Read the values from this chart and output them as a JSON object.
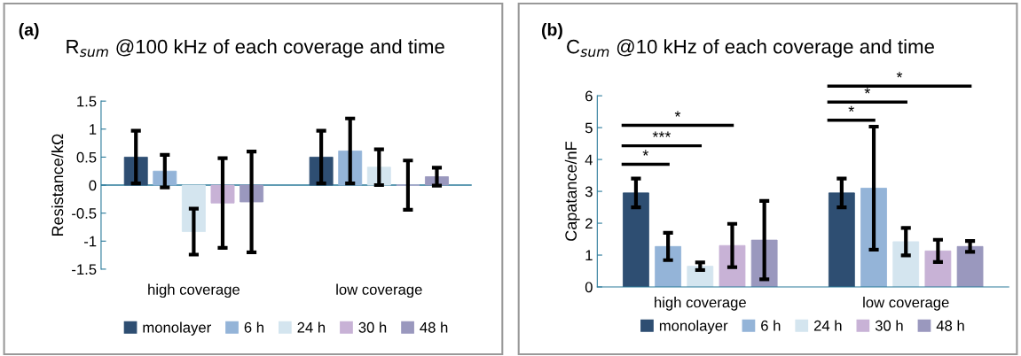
{
  "chart_data": [
    {
      "type": "bar",
      "title": "R$_{sum}$ @100 kHz of each coverage and time",
      "ylabel": "Resistance/kΩ",
      "categories": [
        "high coverage",
        "low coverage"
      ],
      "ylim": [
        -1.5,
        1.5
      ],
      "yticks": [
        {
          "value": -1.5,
          "label": "-1.5"
        },
        {
          "value": -1,
          "label": "-1"
        },
        {
          "value": -0.5,
          "label": "-0.5"
        },
        0,
        0.5,
        1,
        1.5
      ],
      "grid": false,
      "legend": "bottom",
      "annotations": [
        "(a)"
      ],
      "ref_lines": [
        {
          "axis": "y",
          "value": 0,
          "color": "#2a7a9a"
        }
      ],
      "series": [
        {
          "name": "monolayer",
          "color": "#2e4e72",
          "values": [
            0.5,
            0.5
          ],
          "errors": [
            0.47,
            0.47
          ]
        },
        {
          "name": "6 h",
          "color": "#94b4d8",
          "values": [
            0.25,
            0.61
          ],
          "errors": [
            0.29,
            0.58
          ]
        },
        {
          "name": "24 h",
          "color": "#d4e5ef",
          "values": [
            -0.83,
            0.32
          ],
          "errors": [
            0.41,
            0.32
          ]
        },
        {
          "name": "30 h",
          "color": "#c8b2d6",
          "values": [
            -0.32,
            0.0
          ],
          "errors": [
            0.8,
            0.44
          ]
        },
        {
          "name": "48 h",
          "color": "#9a98be",
          "values": [
            -0.3,
            0.15
          ],
          "errors": [
            0.9,
            0.16
          ]
        }
      ]
    },
    {
      "type": "bar",
      "title": "C$_{sum}$ @10 kHz of each coverage and time",
      "ylabel": "Capatance/nF",
      "categories": [
        "high coverage",
        "low coverage"
      ],
      "ylim": [
        0,
        6
      ],
      "yticks": [
        0,
        1,
        2,
        3,
        4,
        5,
        6
      ],
      "grid": false,
      "legend": "bottom",
      "annotations": [
        "(b)",
        "*",
        "***",
        "*",
        "*",
        "*",
        "*"
      ],
      "series": [
        {
          "name": "monolayer",
          "color": "#2e4e72",
          "values": [
            2.95,
            2.95
          ],
          "errors": [
            0.45,
            0.45
          ]
        },
        {
          "name": "6 h",
          "color": "#94b4d8",
          "values": [
            1.27,
            3.1
          ],
          "errors": [
            0.43,
            1.93
          ]
        },
        {
          "name": "24 h",
          "color": "#d4e5ef",
          "values": [
            0.65,
            1.42
          ],
          "errors": [
            0.12,
            0.43
          ]
        },
        {
          "name": "30 h",
          "color": "#c8b2d6",
          "values": [
            1.3,
            1.13
          ],
          "errors": [
            0.68,
            0.35
          ]
        },
        {
          "name": "48 h",
          "color": "#9a98be",
          "values": [
            1.47,
            1.27
          ],
          "errors": [
            1.23,
            0.17
          ]
        }
      ]
    }
  ]
}
